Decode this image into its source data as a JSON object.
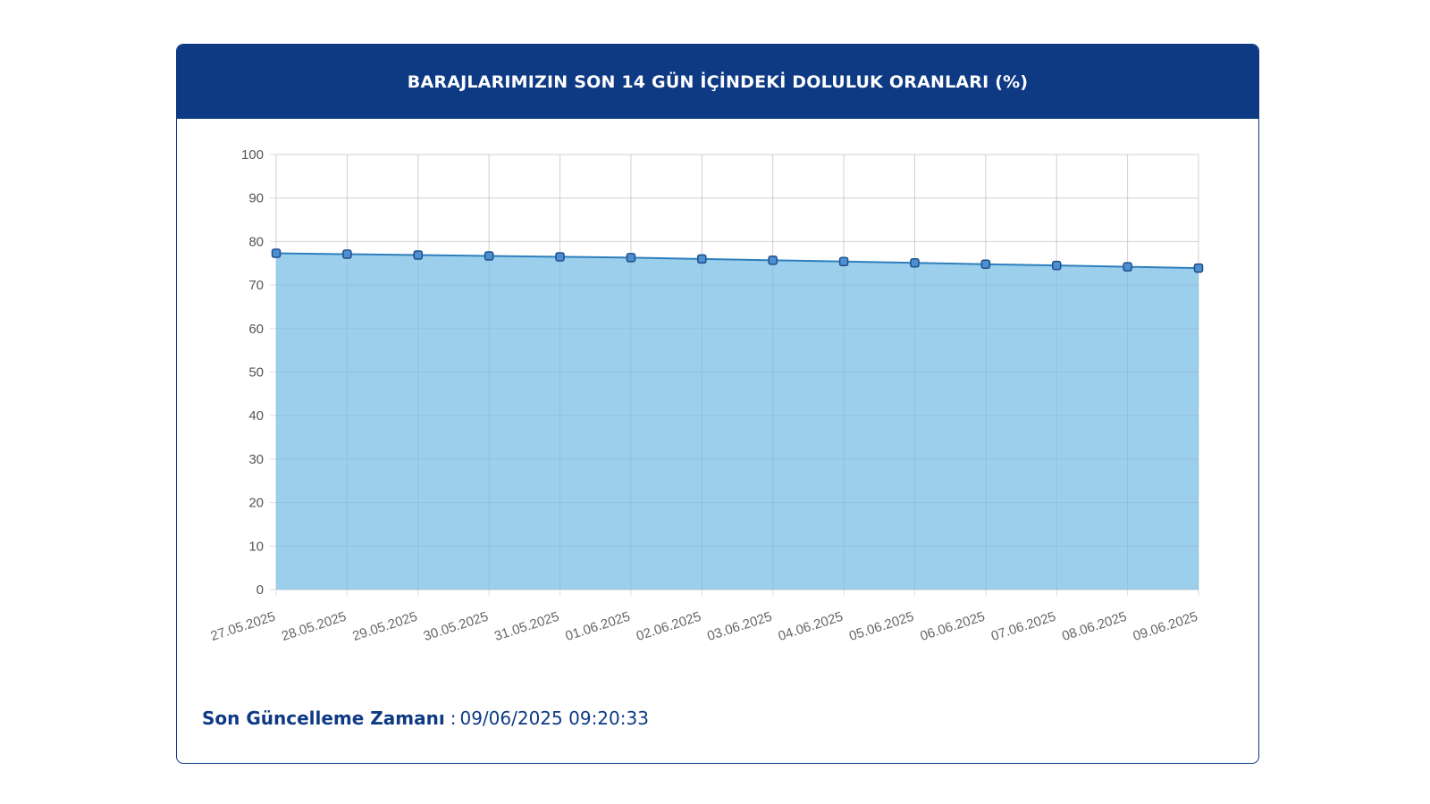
{
  "header": {
    "title": "BARAJLARIMIZIN SON 14 GÜN İÇİNDEKİ DOLULUK ORANLARI (%)"
  },
  "footer": {
    "label": "Son Güncelleme Zamanı",
    "separator": ":",
    "value": "09/06/2025 09:20:33"
  },
  "colors": {
    "header_bg": "#0e3a84",
    "area_fill": "#9bcfec",
    "line": "#2f7fbd",
    "marker_fill": "#4d8fd0",
    "marker_stroke": "#1e4f8a",
    "grid": "#dddddd"
  },
  "chart_data": {
    "type": "area",
    "title": "BARAJLARIMIZIN SON 14 GÜN İÇİNDEKİ DOLULUK ORANLARI (%)",
    "xlabel": "",
    "ylabel": "",
    "ylim": [
      0,
      100
    ],
    "yticks": [
      0,
      10,
      20,
      30,
      40,
      50,
      60,
      70,
      80,
      90,
      100
    ],
    "grid": true,
    "legend": "none",
    "categories": [
      "27.05.2025",
      "28.05.2025",
      "29.05.2025",
      "30.05.2025",
      "31.05.2025",
      "01.06.2025",
      "02.06.2025",
      "03.06.2025",
      "04.06.2025",
      "05.06.2025",
      "06.06.2025",
      "07.06.2025",
      "08.06.2025",
      "09.06.2025"
    ],
    "values": [
      77.3,
      77.1,
      76.9,
      76.7,
      76.5,
      76.3,
      76.0,
      75.7,
      75.4,
      75.1,
      74.8,
      74.5,
      74.2,
      73.9
    ]
  }
}
